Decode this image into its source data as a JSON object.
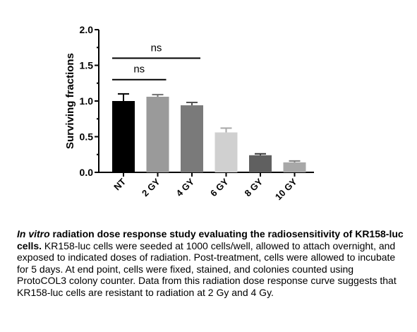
{
  "chart_data": {
    "type": "bar",
    "categories": [
      "NT",
      "2 GY",
      "4 GY",
      "6 GY",
      "8 GY",
      "10 GY"
    ],
    "values": [
      1.0,
      1.06,
      0.94,
      0.56,
      0.24,
      0.14
    ],
    "errors": [
      0.1,
      0.03,
      0.04,
      0.06,
      0.02,
      0.02
    ],
    "bar_colors": [
      "#000000",
      "#9a9a9a",
      "#7a7a7a",
      "#d0d0d0",
      "#606060",
      "#a8a8a8"
    ],
    "ylabel": "Surviving fractions",
    "ylim": [
      0,
      2.0
    ],
    "yticks": [
      "0.0",
      "0.5",
      "1.0",
      "1.5",
      "2.0"
    ],
    "significance": [
      {
        "from": 0,
        "to": 1,
        "label": "ns",
        "y": 1.3
      },
      {
        "from": 0,
        "to": 2,
        "label": "ns",
        "y": 1.6
      }
    ]
  },
  "caption": {
    "italic": "In vitro",
    "bold": " radiation dose response study evaluating the radiosensitivity of KR158-luc cells.",
    "body": " KR158-luc cells were seeded at 1000 cells/well, allowed to attach overnight, and exposed to indicated doses of radiation. Post-treatment, cells were allowed to incubate for 5 days. At end point, cells were fixed, stained, and colonies counted using ProtoCOL3 colony counter. Data from this radiation dose response curve suggests that KR158-luc cells are resistant to radiation at 2 Gy and 4 Gy."
  }
}
